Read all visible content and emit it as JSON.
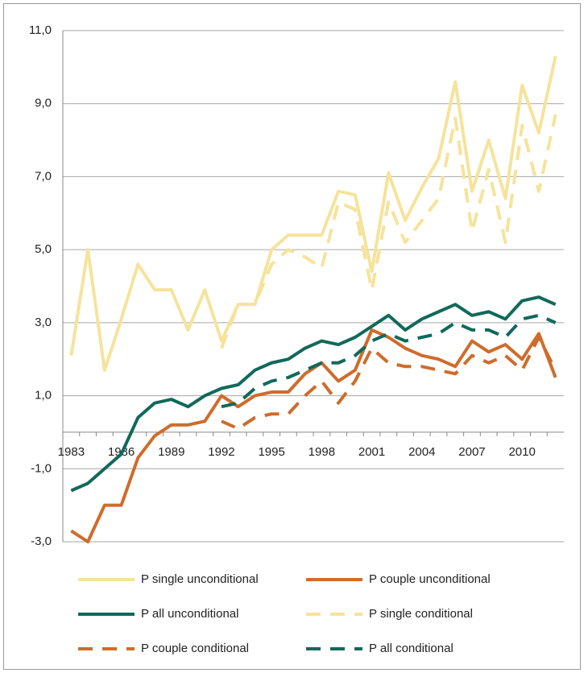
{
  "chart_data": {
    "type": "line",
    "categories": [
      "1983",
      null,
      null,
      "1986",
      null,
      null,
      "1989",
      null,
      null,
      "1992",
      null,
      null,
      "1995",
      null,
      null,
      "1998",
      null,
      null,
      "2001",
      null,
      null,
      "2004",
      null,
      null,
      "2007",
      null,
      null,
      "2010",
      null,
      null
    ],
    "ylim": [
      -3,
      11
    ],
    "yticks": [
      {
        "value": -3,
        "label": "-3,0"
      },
      {
        "value": -1,
        "label": "-1,0"
      },
      {
        "value": 1,
        "label": "1,0"
      },
      {
        "value": 3,
        "label": "3,0"
      },
      {
        "value": 5,
        "label": "5,0"
      },
      {
        "value": 7,
        "label": "7,0"
      },
      {
        "value": 9,
        "label": "9,0"
      },
      {
        "value": 11,
        "label": "11,0"
      }
    ],
    "grid": true,
    "legend": "bottom",
    "series": [
      {
        "name": "P single unconditional",
        "color": "#f6e39b",
        "style": "solid",
        "values": [
          2.1,
          5.0,
          1.7,
          3.1,
          4.6,
          3.9,
          3.9,
          2.8,
          3.9,
          2.5,
          3.5,
          3.5,
          5.0,
          5.4,
          5.4,
          5.4,
          6.6,
          6.5,
          4.4,
          7.1,
          5.8,
          6.7,
          7.5,
          9.6,
          6.6,
          8.0,
          6.4,
          9.5,
          8.2,
          10.3
        ]
      },
      {
        "name": "P couple unconditional",
        "color": "#cf6c2b",
        "style": "solid",
        "values": [
          -2.7,
          -3.0,
          -2.0,
          -2.0,
          -0.7,
          -0.1,
          0.2,
          0.2,
          0.3,
          1.0,
          0.7,
          1.0,
          1.1,
          1.1,
          1.6,
          1.9,
          1.4,
          1.7,
          2.8,
          2.6,
          2.3,
          2.1,
          2.0,
          1.8,
          2.5,
          2.2,
          2.4,
          2.0,
          2.7,
          1.5
        ]
      },
      {
        "name": "P all unconditional",
        "color": "#11695a",
        "style": "solid",
        "values": [
          -1.6,
          -1.4,
          -1.0,
          -0.6,
          0.4,
          0.8,
          0.9,
          0.7,
          1.0,
          1.2,
          1.3,
          1.7,
          1.9,
          2.0,
          2.3,
          2.5,
          2.4,
          2.6,
          2.9,
          3.2,
          2.8,
          3.1,
          3.3,
          3.5,
          3.2,
          3.3,
          3.1,
          3.6,
          3.7,
          3.5
        ]
      },
      {
        "name": "P single conditional",
        "color": "#f6e39b",
        "style": "dashed",
        "values": [
          null,
          null,
          null,
          null,
          null,
          null,
          null,
          null,
          null,
          2.3,
          3.5,
          3.5,
          4.6,
          5.0,
          4.8,
          4.5,
          6.3,
          6.1,
          3.9,
          6.3,
          5.2,
          5.8,
          6.4,
          8.6,
          5.5,
          7.2,
          5.2,
          8.4,
          6.6,
          8.7
        ]
      },
      {
        "name": "P couple conditional",
        "color": "#cf6c2b",
        "style": "dashed",
        "values": [
          null,
          null,
          null,
          null,
          null,
          null,
          null,
          null,
          null,
          0.3,
          0.1,
          0.4,
          0.5,
          0.5,
          1.0,
          1.4,
          0.8,
          1.4,
          2.3,
          1.9,
          1.8,
          1.8,
          1.7,
          1.6,
          2.1,
          1.9,
          2.1,
          1.7,
          2.6,
          1.7
        ]
      },
      {
        "name": "P all conditional",
        "color": "#11695a",
        "style": "dashed",
        "values": [
          null,
          null,
          null,
          null,
          null,
          null,
          null,
          null,
          null,
          0.7,
          0.8,
          1.2,
          1.4,
          1.5,
          1.7,
          1.9,
          1.9,
          2.1,
          2.5,
          2.7,
          2.5,
          2.6,
          2.7,
          3.0,
          2.8,
          2.8,
          2.6,
          3.1,
          3.2,
          3.0
        ]
      }
    ]
  }
}
